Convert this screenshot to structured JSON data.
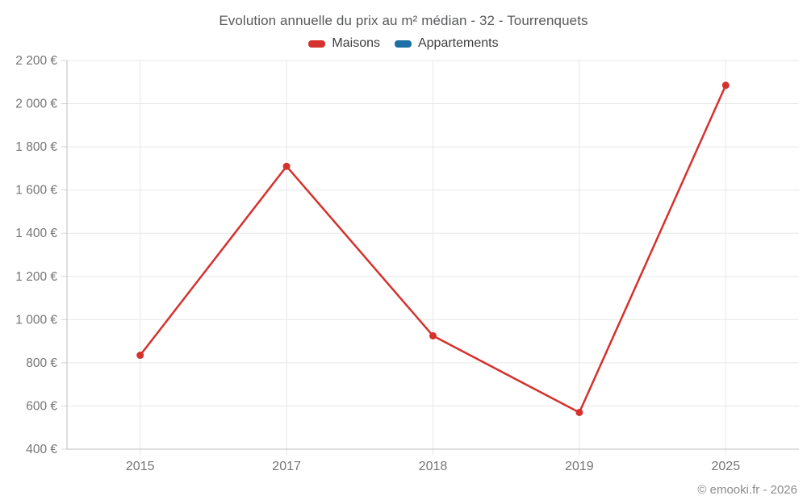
{
  "header": {
    "title": "Evolution annuelle du prix au m² médian - 32 - Tourrenquets"
  },
  "legend": {
    "items": [
      {
        "label": "Maisons",
        "color": "#d5312d"
      },
      {
        "label": "Appartements",
        "color": "#1d6fa5"
      }
    ]
  },
  "footer": {
    "credit": "© emooki.fr - 2026"
  },
  "colors": {
    "maisons": "#d5312d",
    "appartements": "#1d6fa5",
    "gridline": "#e7e7e7",
    "axis_line": "#bdbdbd",
    "tick": "#d6d6d6",
    "tick_label": "#757575"
  },
  "chart_data": {
    "type": "line",
    "title": "Evolution annuelle du prix au m² médian - 32 - Tourrenquets",
    "categories": [
      "2015",
      "2017",
      "2018",
      "2019",
      "2025"
    ],
    "series": [
      {
        "name": "Maisons",
        "color": "#d5312d",
        "values": [
          835,
          1710,
          925,
          570,
          2085
        ]
      },
      {
        "name": "Appartements",
        "color": "#1d6fa5",
        "values": []
      }
    ],
    "xlabel": "",
    "ylabel": "",
    "unit": "€",
    "ylim": [
      400,
      2200
    ],
    "ytick_step": 200,
    "yticks": [
      400,
      600,
      800,
      1000,
      1200,
      1400,
      1600,
      1800,
      2000,
      2200
    ],
    "ytick_labels": [
      "400 €",
      "600 €",
      "800 €",
      "1 000 €",
      "1 200 €",
      "1 400 €",
      "1 600 €",
      "1 800 €",
      "2 000 €",
      "2 200 €"
    ],
    "grid": true,
    "legend_position": "top"
  }
}
